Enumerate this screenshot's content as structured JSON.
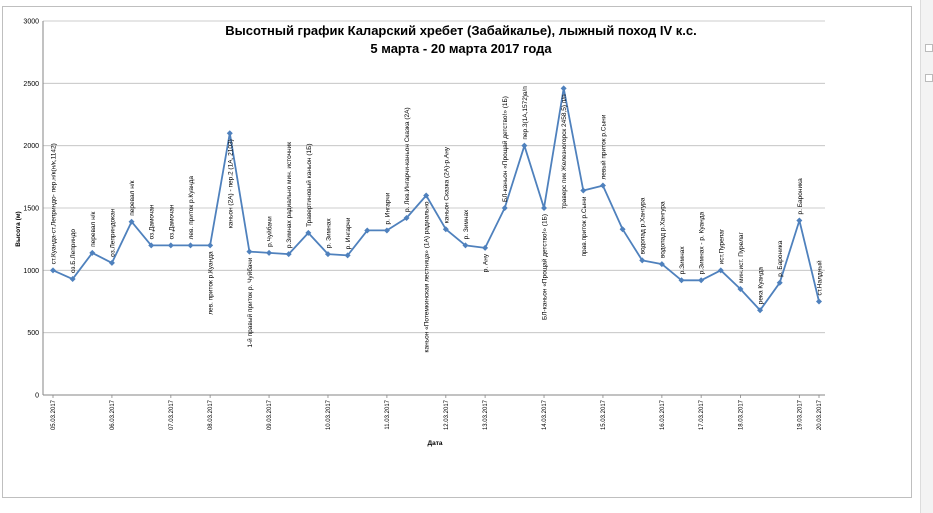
{
  "chart_data": {
    "type": "line",
    "title": "Высотный график Каларский хребет (Забайкалье), лыжный поход IV к.с.",
    "subtitle": "5 марта - 20 марта 2017 года",
    "xlabel": "Дата",
    "ylabel": "Высота (м)",
    "ylim": [
      0,
      3000
    ],
    "y_ticks": [
      "0",
      "500",
      "1000",
      "1500",
      "2000",
      "2500",
      "3000"
    ],
    "grid": "horizontal",
    "legend": "none",
    "line_color": "#4f81bd",
    "date_ticks": [
      {
        "label": "05.03.2017",
        "index": 0
      },
      {
        "label": "06.03.2017",
        "index": 3
      },
      {
        "label": "07.03.2017",
        "index": 6
      },
      {
        "label": "08.03.2017",
        "index": 8
      },
      {
        "label": "09.03.2017",
        "index": 11
      },
      {
        "label": "10.03.2017",
        "index": 14
      },
      {
        "label": "11.03.2017",
        "index": 17
      },
      {
        "label": "12.03.2017",
        "index": 20
      },
      {
        "label": "13.03.2017",
        "index": 22
      },
      {
        "label": "14.03.2017",
        "index": 25
      },
      {
        "label": "15.03.2017",
        "index": 28
      },
      {
        "label": "16.03.2017",
        "index": 31
      },
      {
        "label": "17.03.2017",
        "index": 33
      },
      {
        "label": "18.03.2017",
        "index": 35
      },
      {
        "label": "19.03.2017",
        "index": 38
      },
      {
        "label": "20.03.2017",
        "index": 39
      }
    ],
    "points": [
      {
        "y": 1000,
        "label": "ст.Куанда-ст.Леприндо- пер.н/к(н/к,1142)",
        "pos": "above"
      },
      {
        "y": 930,
        "label": "оз.Б.Леприндо",
        "pos": "above"
      },
      {
        "y": 1140,
        "label": "перевал н/к",
        "pos": "above"
      },
      {
        "y": 1060,
        "label": "оз.Леприндокан",
        "pos": "above"
      },
      {
        "y": 1390,
        "label": "перевал н/к",
        "pos": "above"
      },
      {
        "y": 1200,
        "label": "оз.Дамочан",
        "pos": "above"
      },
      {
        "y": 1200,
        "label": "оз.Дамочан",
        "pos": "above"
      },
      {
        "y": 1200,
        "label": "лев. приток р.Куанда",
        "pos": "above"
      },
      {
        "y": 1200,
        "label": "лев. приток р.Куанда",
        "pos": "below"
      },
      {
        "y": 2100,
        "label": "каньон (2А) - пер.2 (1А, 2103)",
        "pos": "below"
      },
      {
        "y": 1150,
        "label": "1-й правый приток р. Чуйбачи",
        "pos": "below"
      },
      {
        "y": 1140,
        "label": "р.Чуйбачи",
        "pos": "above"
      },
      {
        "y": 1130,
        "label": "р.Зимнах радиально мин. источник",
        "pos": "above"
      },
      {
        "y": 1300,
        "label": "Травертиновый каньон (1Б)",
        "pos": "above"
      },
      {
        "y": 1130,
        "label": "р. Зимнах",
        "pos": "above"
      },
      {
        "y": 1120,
        "label": "р. Ингарчи",
        "pos": "above"
      },
      {
        "y": 1320,
        "label": "",
        "pos": "above"
      },
      {
        "y": 1320,
        "label": "р. Ингарчи",
        "pos": "above"
      },
      {
        "y": 1420,
        "label": "р. Лев.Ингарчи-каньон Сказка (2А)",
        "pos": "above"
      },
      {
        "y": 1600,
        "label": "каньон «Потемкинская лестница» (1А) радиально",
        "pos": "below"
      },
      {
        "y": 1330,
        "label": "каньон Сказка (2А)-р.Ану",
        "pos": "above"
      },
      {
        "y": 1200,
        "label": "р. Зимнах",
        "pos": "above"
      },
      {
        "y": 1180,
        "label": "р. Ану",
        "pos": "below"
      },
      {
        "y": 1500,
        "label": "БЛ-каньон «Прощай детство!» (1Б)",
        "pos": "above"
      },
      {
        "y": 2000,
        "label": "пер.3(1А,1572)в/п",
        "pos": "above"
      },
      {
        "y": 1500,
        "label": "БЛ-каньон «Прощай детство!» (1Б)",
        "pos": "below"
      },
      {
        "y": 2460,
        "label": "траверс пик Железногорск 2458,5) п/п",
        "pos": "below"
      },
      {
        "y": 1640,
        "label": "прав.приток р.Сыни",
        "pos": "below"
      },
      {
        "y": 1680,
        "label": "левый приток р.Сыни",
        "pos": "above"
      },
      {
        "y": 1330,
        "label": "",
        "pos": "above"
      },
      {
        "y": 1080,
        "label": "водопад р.Хангура",
        "pos": "above"
      },
      {
        "y": 1050,
        "label": "водопад р.Хангура",
        "pos": "above"
      },
      {
        "y": 920,
        "label": "р.Зимнах",
        "pos": "above"
      },
      {
        "y": 920,
        "label": "р.Зимнах - р. Куанда",
        "pos": "above"
      },
      {
        "y": 1000,
        "label": "ист.Пурелаг",
        "pos": "above"
      },
      {
        "y": 850,
        "label": "мин.ист. Пурелаг",
        "pos": "above"
      },
      {
        "y": 680,
        "label": "река Куанда",
        "pos": "above"
      },
      {
        "y": 900,
        "label": "р. Бароника",
        "pos": "above"
      },
      {
        "y": 1400,
        "label": "р. Бароника",
        "pos": "above"
      },
      {
        "y": 750,
        "label": "ст.Налдный",
        "pos": "above"
      }
    ]
  }
}
